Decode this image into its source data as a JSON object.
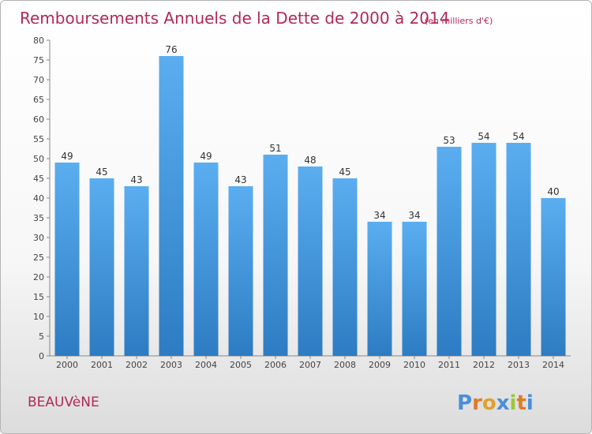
{
  "chart_data": {
    "type": "bar",
    "title": "Remboursements Annuels de la Dette de 2000 à 2014",
    "subtitle": "(en milliers d'€)",
    "categories": [
      "2000",
      "2001",
      "2002",
      "2003",
      "2004",
      "2005",
      "2006",
      "2007",
      "2008",
      "2009",
      "2010",
      "2011",
      "2012",
      "2013",
      "2014"
    ],
    "values": [
      49,
      45,
      43,
      76,
      49,
      43,
      51,
      48,
      45,
      34,
      34,
      53,
      54,
      54,
      40
    ],
    "ylim": [
      0,
      80
    ],
    "yticks": [
      0,
      5,
      10,
      15,
      20,
      25,
      30,
      35,
      40,
      45,
      50,
      55,
      60,
      65,
      70,
      75,
      80
    ],
    "grid": false,
    "bar_color": "#4a9ee0",
    "bar_color_dark": "#2e7fc6"
  },
  "footer": {
    "commune": "BEAUVèNE",
    "logo": "Proxiti"
  },
  "colors": {
    "title": "#b02a55",
    "logo_letters": [
      "#4a8fd9",
      "#e07a2a",
      "#e0a030",
      "#4a8fd9",
      "#9ac83a",
      "#e07a2a",
      "#4a8fd9"
    ]
  }
}
